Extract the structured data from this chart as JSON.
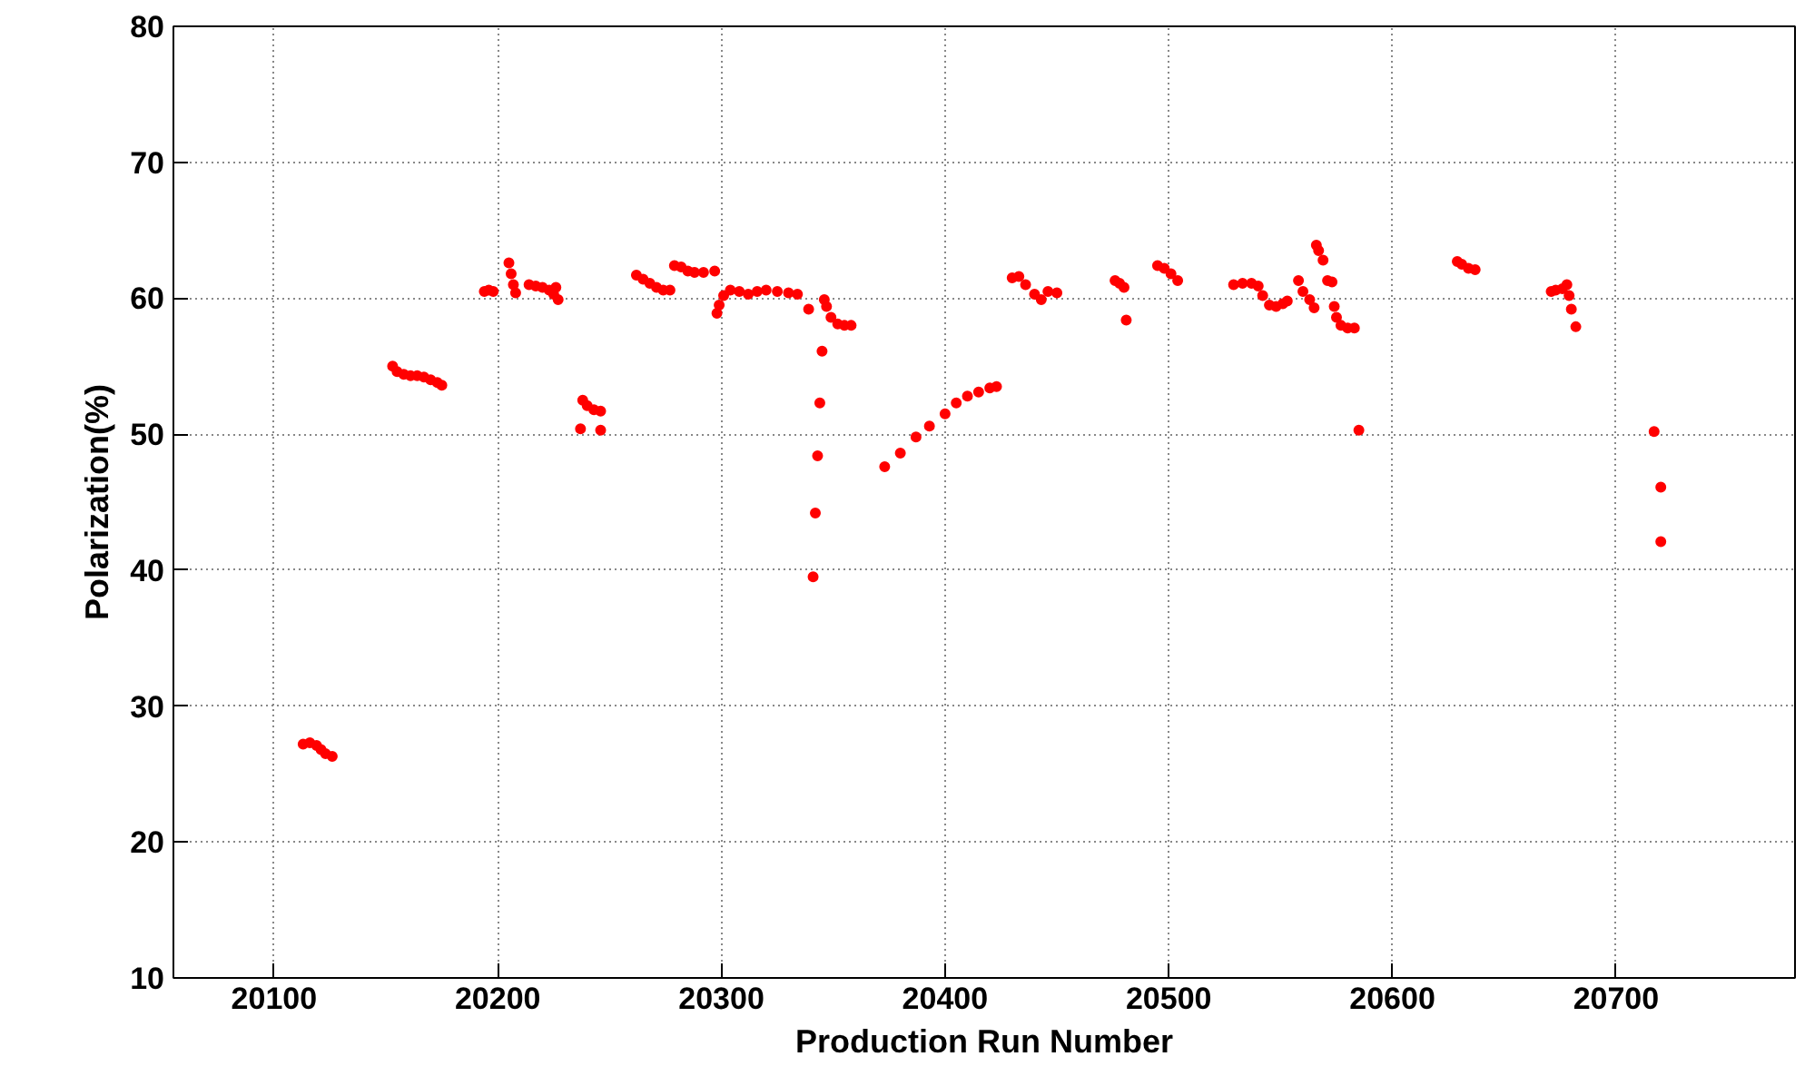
{
  "chart_data": {
    "type": "scatter",
    "xlabel": "Production Run Number",
    "ylabel": "Polarization(%)",
    "xlim": [
      20055,
      20780
    ],
    "ylim": [
      10,
      80
    ],
    "xticks": [
      20100,
      20200,
      20300,
      20400,
      20500,
      20600,
      20700
    ],
    "yticks": [
      10,
      20,
      30,
      40,
      50,
      60,
      70,
      80
    ],
    "grid": true,
    "marker": "circle",
    "series": [
      {
        "color": "#ff0000",
        "x": [
          20113,
          20116,
          20119,
          20121,
          20123,
          20126,
          20153,
          20155,
          20158,
          20161,
          20164,
          20167,
          20170,
          20173,
          20175,
          20194,
          20196,
          20198,
          20205,
          20206,
          20207,
          20208,
          20214,
          20217,
          20220,
          20223,
          20225,
          20227,
          20226,
          20238,
          20240,
          20243,
          20246,
          20237,
          20246,
          20262,
          20265,
          20268,
          20271,
          20274,
          20277,
          20279,
          20282,
          20285,
          20288,
          20292,
          20297,
          20298,
          20299,
          20301,
          20304,
          20308,
          20312,
          20316,
          20320,
          20325,
          20330,
          20334,
          20339,
          20346,
          20345,
          20344,
          20343,
          20342,
          20341,
          20347,
          20349,
          20352,
          20355,
          20358,
          20373,
          20380,
          20387,
          20393,
          20400,
          20405,
          20410,
          20415,
          20420,
          20423,
          20430,
          20433,
          20436,
          20440,
          20443,
          20446,
          20450,
          20476,
          20478,
          20480,
          20481,
          20495,
          20498,
          20501,
          20504,
          20529,
          20533,
          20537,
          20540,
          20542,
          20545,
          20548,
          20551,
          20553,
          20558,
          20560,
          20563,
          20565,
          20566,
          20567,
          20569,
          20571,
          20573,
          20574,
          20575,
          20577,
          20580,
          20583,
          20585,
          20629,
          20631,
          20634,
          20637,
          20671,
          20673,
          20676,
          20678,
          20679,
          20680,
          20682,
          20717,
          20720,
          20720
        ],
        "values": [
          27.2,
          27.3,
          27.1,
          26.8,
          26.5,
          26.3,
          55.0,
          54.6,
          54.4,
          54.3,
          54.3,
          54.2,
          54.0,
          53.8,
          53.6,
          60.5,
          60.6,
          60.5,
          62.6,
          61.8,
          61.0,
          60.4,
          61.0,
          60.9,
          60.8,
          60.6,
          60.3,
          59.9,
          60.8,
          52.5,
          52.1,
          51.8,
          51.7,
          50.4,
          50.3,
          61.7,
          61.4,
          61.1,
          60.8,
          60.6,
          60.6,
          62.4,
          62.3,
          62.0,
          61.9,
          61.9,
          62.0,
          58.9,
          59.5,
          60.2,
          60.6,
          60.5,
          60.3,
          60.5,
          60.6,
          60.5,
          60.4,
          60.3,
          59.2,
          59.9,
          56.1,
          52.3,
          48.4,
          44.2,
          39.5,
          59.4,
          58.6,
          58.1,
          58.0,
          58.0,
          47.6,
          48.6,
          49.8,
          50.6,
          51.5,
          52.3,
          52.8,
          53.1,
          53.4,
          53.5,
          61.5,
          61.6,
          61.0,
          60.3,
          59.9,
          60.5,
          60.4,
          61.3,
          61.1,
          60.8,
          58.4,
          62.4,
          62.2,
          61.8,
          61.3,
          61.0,
          61.1,
          61.1,
          60.9,
          60.2,
          59.5,
          59.4,
          59.6,
          59.8,
          61.3,
          60.5,
          59.9,
          59.3,
          63.9,
          63.5,
          62.8,
          61.3,
          61.2,
          59.4,
          58.6,
          58.0,
          57.8,
          57.8,
          50.3,
          62.7,
          62.5,
          62.2,
          62.1,
          60.5,
          60.6,
          60.7,
          61.0,
          60.2,
          59.2,
          57.9,
          50.2,
          46.1,
          42.1
        ]
      }
    ]
  }
}
